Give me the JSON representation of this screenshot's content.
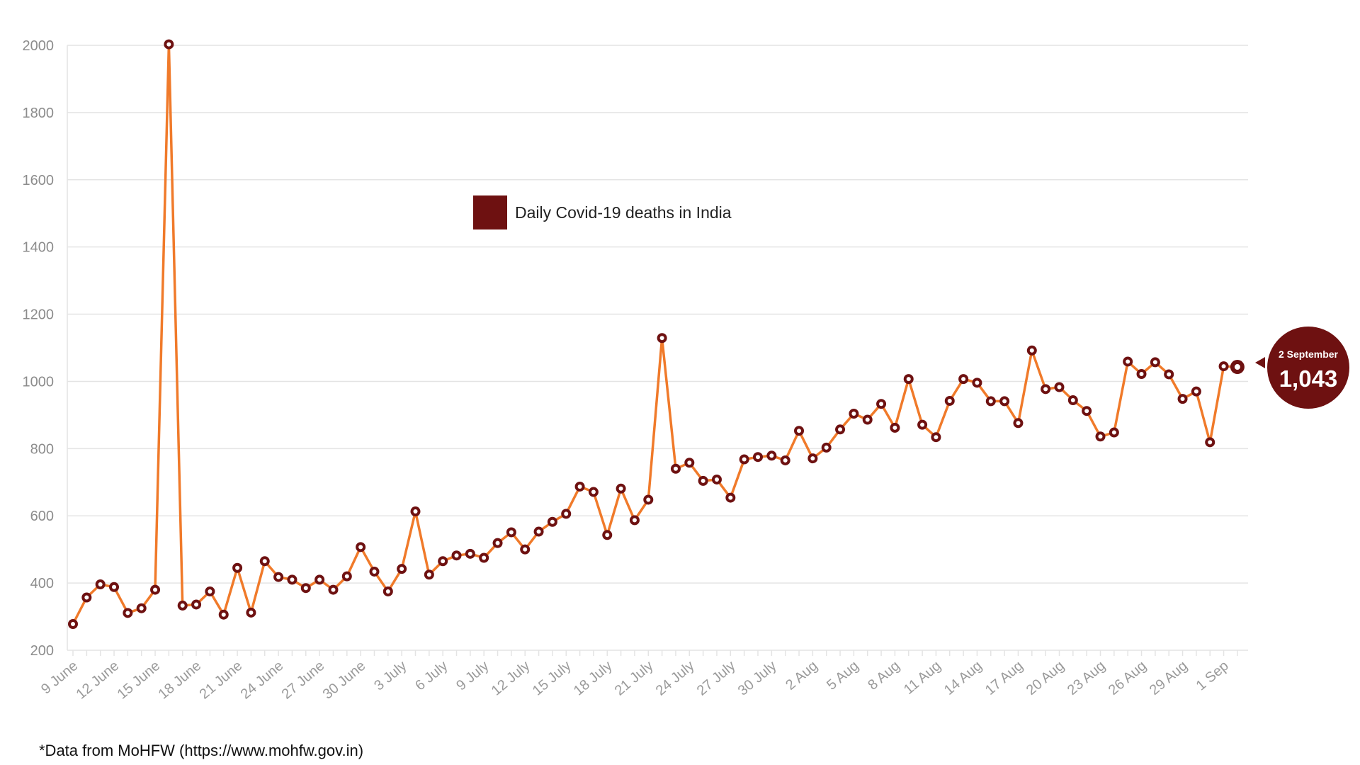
{
  "colors": {
    "line": "#f07a2a",
    "marker": "#6e1111",
    "marker_center": "#ffffff",
    "grid": "#e4e4e4",
    "badge": "#6e1111"
  },
  "chart_data": {
    "type": "line",
    "legend": {
      "label": "Daily Covid-19 deaths in India",
      "position": "top-center"
    },
    "ylim": [
      200,
      2000
    ],
    "yticks": [
      200,
      400,
      600,
      800,
      1000,
      1200,
      1400,
      1600,
      1800,
      2000
    ],
    "grid": true,
    "x_tick_labels": [
      "9 June",
      "12 June",
      "15 June",
      "18 June",
      "21 June",
      "24 June",
      "27 June",
      "30 June",
      "3 July",
      "6 July",
      "9 July",
      "12 July",
      "15 July",
      "18 July",
      "21 July",
      "24 July",
      "27 July",
      "30 July",
      "2 Aug",
      "5 Aug",
      "8 Aug",
      "11 Aug",
      "14 Aug",
      "17 Aug",
      "20 Aug",
      "23 Aug",
      "26 Aug",
      "29 Aug",
      "1 Sep"
    ],
    "x_start": "9 June",
    "x_end": "2 September",
    "series": [
      {
        "name": "Daily Covid-19 deaths in India",
        "values": [
          278,
          357,
          396,
          388,
          311,
          325,
          380,
          2003,
          333,
          336,
          375,
          306,
          445,
          312,
          465,
          418,
          410,
          385,
          410,
          380,
          420,
          507,
          434,
          375,
          442,
          613,
          425,
          465,
          482,
          487,
          475,
          519,
          551,
          500,
          553,
          582,
          606,
          687,
          671,
          543,
          681,
          587,
          648,
          1129,
          740,
          758,
          704,
          708,
          654,
          768,
          775,
          779,
          765,
          853,
          771,
          803,
          857,
          904,
          886,
          933,
          862,
          1007,
          871,
          834,
          942,
          1007,
          996,
          941,
          941,
          876,
          1092,
          977,
          983,
          944,
          912,
          836,
          848,
          1059,
          1022,
          1057,
          1021,
          948,
          970,
          819,
          1045,
          1043
        ]
      }
    ],
    "callout": {
      "date": "2 September",
      "value": "1,043"
    }
  },
  "footnote": "*Data from MoHFW (https://www.mohfw.gov.in)"
}
